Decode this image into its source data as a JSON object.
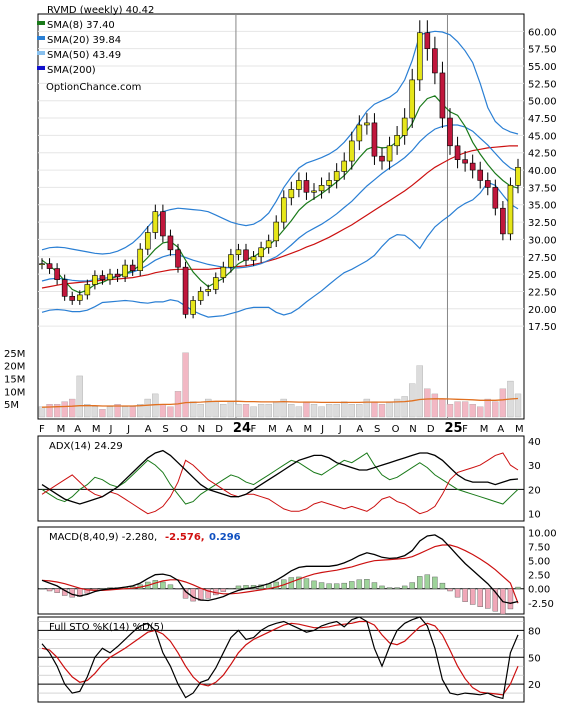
{
  "chart_data": {
    "type": "line",
    "symbol": "RVMD",
    "timeframe": "weekly",
    "title": "RVMD (weekly) 40.42",
    "watermark": "OptionChance.com",
    "x_axis_labels": [
      "F",
      "M",
      "A",
      "M",
      "J",
      "J",
      "A",
      "S",
      "O",
      "N",
      "D",
      "24",
      "F",
      "M",
      "A",
      "M",
      "J",
      "J",
      "A",
      "S",
      "O",
      "N",
      "D",
      "25",
      "F",
      "M",
      "A",
      "M"
    ],
    "price_panel": {
      "ylim": [
        15.5,
        62.5
      ],
      "yticks": [
        "17.50",
        "20.00",
        "22.50",
        "25.00",
        "27.50",
        "30.00",
        "32.50",
        "35.00",
        "37.50",
        "40.00",
        "42.50",
        "45.00",
        "47.50",
        "50.00",
        "52.50",
        "55.00",
        "57.50",
        "60.00"
      ],
      "legend": [
        {
          "label": "RVMD (weekly) 40.42",
          "color": "#000000"
        },
        {
          "label": "SMA(8) 37.40",
          "color": "#1a7a1a"
        },
        {
          "label": "SMA(20) 39.84",
          "color": "#2a7fd4"
        },
        {
          "label": "SMA(50) 43.49",
          "color": "#88c0ee"
        },
        {
          "label": "SMA(200)",
          "color": "#1010cc"
        }
      ],
      "close": [
        26.5,
        25.8,
        24.2,
        21.8,
        21.2,
        22.0,
        23.5,
        24.8,
        24.2,
        25.0,
        24.6,
        26.3,
        25.5,
        28.6,
        31.0,
        34.0,
        30.5,
        28.5,
        26.0,
        19.2,
        21.2,
        22.5,
        22.8,
        24.5,
        26.0,
        27.8,
        28.5,
        27.0,
        27.5,
        28.8,
        29.8,
        32.5,
        36.0,
        37.2,
        38.5,
        36.8,
        37.0,
        37.8,
        38.5,
        39.8,
        41.3,
        44.2,
        46.5,
        46.8,
        42.0,
        41.3,
        43.5,
        45.0,
        47.5,
        53.0,
        59.8,
        57.5,
        54.0,
        47.5,
        43.5,
        41.5,
        41.0,
        40.0,
        38.5,
        37.5,
        34.5,
        30.8,
        37.8,
        40.4
      ],
      "sma8": [
        27.0,
        26.2,
        25.3,
        24.0,
        22.8,
        22.3,
        22.7,
        23.5,
        23.8,
        24.3,
        24.7,
        25.1,
        25.5,
        26.3,
        27.4,
        28.6,
        29.5,
        29.7,
        28.9,
        27.0,
        25.3,
        24.1,
        23.2,
        23.8,
        24.4,
        25.4,
        26.5,
        27.1,
        27.5,
        28.2,
        29.1,
        30.1,
        31.4,
        32.7,
        34.2,
        35.2,
        35.9,
        36.6,
        37.4,
        38.3,
        39.2,
        40.4,
        41.8,
        43.0,
        43.4,
        43.2,
        43.3,
        44.1,
        45.2,
        46.7,
        49.1,
        50.3,
        50.7,
        49.5,
        48.4,
        47.9,
        46.3,
        44.0,
        42.3,
        40.8,
        39.5,
        38.5,
        37.7,
        37.4
      ],
      "sma20": [
        24.0,
        24.3,
        24.4,
        24.3,
        24.1,
        24.0,
        24.0,
        24.2,
        24.4,
        24.5,
        24.7,
        25.0,
        25.3,
        25.7,
        26.3,
        27.0,
        27.5,
        27.8,
        27.8,
        27.4,
        27.0,
        26.7,
        26.4,
        26.2,
        26.0,
        25.9,
        25.9,
        26.0,
        26.2,
        26.5,
        27.0,
        27.5,
        28.3,
        29.2,
        30.2,
        31.0,
        31.6,
        32.2,
        32.9,
        33.7,
        34.6,
        35.5,
        36.6,
        37.7,
        38.6,
        39.5,
        40.3,
        41.0,
        41.8,
        42.8,
        44.1,
        45.1,
        45.9,
        46.3,
        46.5,
        46.5,
        46.2,
        45.6,
        44.6,
        43.6,
        42.4,
        41.2,
        40.3,
        39.8
      ],
      "sma50": [
        23.0,
        23.2,
        23.4,
        23.6,
        23.7,
        23.8,
        23.9,
        24.0,
        24.1,
        24.2,
        24.3,
        24.4,
        24.5,
        24.7,
        24.9,
        25.2,
        25.4,
        25.6,
        25.7,
        25.7,
        25.7,
        25.7,
        25.7,
        25.8,
        25.9,
        26.0,
        26.1,
        26.2,
        26.4,
        26.6,
        26.9,
        27.2,
        27.6,
        28.0,
        28.4,
        28.9,
        29.3,
        29.8,
        30.3,
        30.9,
        31.5,
        32.1,
        32.8,
        33.5,
        34.2,
        34.9,
        35.6,
        36.3,
        37.0,
        37.8,
        38.7,
        39.6,
        40.4,
        41.0,
        41.6,
        42.1,
        42.5,
        42.8,
        43.0,
        43.2,
        43.3,
        43.4,
        43.5,
        43.49
      ],
      "bb_upper": [
        28.5,
        28.8,
        28.9,
        28.8,
        28.6,
        28.4,
        28.2,
        28.0,
        27.9,
        28.0,
        28.3,
        28.8,
        29.5,
        30.5,
        31.8,
        33.0,
        34.0,
        34.3,
        34.5,
        34.4,
        34.3,
        34.2,
        34.0,
        33.5,
        33.0,
        32.5,
        32.2,
        32.0,
        32.2,
        32.8,
        33.8,
        35.5,
        37.5,
        39.0,
        40.3,
        41.0,
        41.4,
        41.8,
        42.3,
        43.0,
        44.0,
        45.3,
        46.9,
        48.5,
        49.5,
        50.0,
        50.5,
        51.3,
        53.0,
        55.8,
        59.5,
        59.8,
        60.0,
        59.9,
        59.5,
        58.5,
        57.2,
        55.5,
        52.5,
        49.0,
        47.0,
        46.0,
        45.5,
        45.2
      ],
      "bb_lower": [
        19.5,
        19.8,
        19.9,
        19.8,
        19.6,
        19.6,
        19.8,
        20.3,
        20.9,
        21.0,
        21.1,
        21.2,
        21.1,
        20.9,
        20.8,
        21.0,
        21.0,
        21.3,
        21.1,
        20.4,
        19.7,
        19.2,
        18.8,
        18.9,
        19.0,
        19.3,
        19.6,
        20.0,
        20.2,
        20.2,
        20.2,
        19.5,
        19.1,
        19.4,
        20.1,
        21.0,
        21.8,
        22.6,
        23.5,
        24.4,
        25.2,
        25.7,
        26.3,
        26.9,
        27.7,
        29.0,
        30.1,
        30.7,
        30.6,
        29.8,
        28.7,
        30.4,
        31.8,
        32.7,
        33.5,
        34.5,
        35.2,
        35.7,
        36.7,
        38.2,
        37.8,
        36.4,
        35.1,
        34.4
      ]
    },
    "volume_panel": {
      "ylim": [
        0,
        30
      ],
      "yticks": [
        "5M",
        "10M",
        "15M",
        "20M",
        "25M"
      ],
      "values": [
        4,
        5,
        5,
        6,
        7,
        16,
        5,
        4,
        3,
        4,
        5,
        4,
        4,
        5,
        7,
        9,
        5,
        4,
        10,
        25,
        6,
        5,
        7,
        6,
        5,
        6,
        5,
        5,
        4,
        5,
        5,
        6,
        7,
        5,
        4,
        6,
        5,
        4,
        5,
        5,
        6,
        5,
        5,
        7,
        6,
        5,
        6,
        7,
        8,
        13,
        20,
        11,
        9,
        7,
        5,
        6,
        6,
        5,
        4,
        7,
        6,
        11,
        14,
        9
      ],
      "avg": [
        3.8,
        3.9,
        4.0,
        4.1,
        4.2,
        4.4,
        4.4,
        4.4,
        4.3,
        4.3,
        4.3,
        4.3,
        4.3,
        4.4,
        4.6,
        4.8,
        4.9,
        4.9,
        5.1,
        5.6,
        5.7,
        5.8,
        6.0,
        6.1,
        6.1,
        6.1,
        6.1,
        6.0,
        6.0,
        5.9,
        5.9,
        5.9,
        6.0,
        5.9,
        5.8,
        5.8,
        5.8,
        5.7,
        5.7,
        5.7,
        5.7,
        5.7,
        5.7,
        5.8,
        5.8,
        5.8,
        5.8,
        5.9,
        6.0,
        6.3,
        6.8,
        7.0,
        7.1,
        7.1,
        7.0,
        6.9,
        6.8,
        6.7,
        6.5,
        6.5,
        6.5,
        6.7,
        7.0,
        7.2
      ]
    },
    "adx_panel": {
      "label": "ADX(14) 24.29",
      "ylim": [
        7,
        42
      ],
      "yticks": [
        "10",
        "20",
        "30",
        "40"
      ],
      "adx": [
        22,
        20,
        18,
        16,
        15,
        14,
        15,
        16,
        17,
        19,
        21,
        24,
        27,
        30,
        33,
        35,
        36,
        34,
        31,
        28,
        25,
        22,
        20,
        19,
        18,
        17,
        17,
        18,
        20,
        22,
        24,
        26,
        28,
        30,
        32,
        33,
        34,
        34,
        33,
        31,
        30,
        29,
        28,
        28,
        29,
        30,
        31,
        32,
        33,
        34,
        35,
        35,
        34,
        32,
        29,
        26,
        24,
        23,
        23,
        23,
        22,
        23,
        24,
        24.29
      ],
      "plus_di": [
        20,
        18,
        16,
        15,
        17,
        20,
        22,
        25,
        24,
        22,
        21,
        23,
        26,
        29,
        32,
        30,
        27,
        22,
        18,
        14,
        15,
        18,
        20,
        22,
        24,
        26,
        25,
        23,
        22,
        24,
        26,
        28,
        30,
        32,
        31,
        29,
        27,
        26,
        28,
        30,
        32,
        31,
        33,
        35,
        30,
        26,
        24,
        25,
        27,
        29,
        31,
        29,
        26,
        24,
        22,
        20,
        19,
        18,
        17,
        16,
        15,
        14,
        17,
        20
      ],
      "minus_di": [
        18,
        20,
        22,
        24,
        26,
        23,
        20,
        18,
        17,
        19,
        18,
        16,
        14,
        12,
        10,
        11,
        13,
        17,
        23,
        32,
        30,
        27,
        24,
        22,
        20,
        18,
        17,
        18,
        18,
        17,
        16,
        14,
        12,
        11,
        11,
        12,
        14,
        15,
        14,
        13,
        12,
        13,
        12,
        11,
        13,
        16,
        17,
        15,
        14,
        12,
        10,
        11,
        13,
        18,
        24,
        27,
        28,
        29,
        30,
        32,
        34,
        35,
        30,
        28
      ]
    },
    "macd_panel": {
      "label": "MACD(8,40,9) -2.280,",
      "signal_label": "-2.576,",
      "hist_label": "0.296",
      "ylim": [
        -4.5,
        11
      ],
      "yticks": [
        "-2.50",
        "0.00",
        "2.50",
        "5.00",
        "7.50",
        "10.00"
      ],
      "macd": [
        1.5,
        1.0,
        0.5,
        -0.3,
        -1.0,
        -1.3,
        -1.0,
        -0.5,
        -0.2,
        0.0,
        0.1,
        0.3,
        0.5,
        1.0,
        1.8,
        2.5,
        2.6,
        2.3,
        1.5,
        -0.5,
        -1.5,
        -2.0,
        -2.1,
        -1.8,
        -1.4,
        -0.8,
        -0.3,
        0.0,
        0.2,
        0.5,
        0.9,
        1.5,
        2.3,
        3.2,
        3.8,
        4.0,
        4.0,
        4.0,
        4.0,
        4.2,
        4.6,
        5.2,
        5.9,
        6.4,
        6.1,
        5.6,
        5.4,
        5.5,
        5.9,
        6.8,
        8.5,
        9.4,
        9.6,
        8.8,
        7.4,
        5.9,
        4.5,
        3.3,
        2.1,
        0.9,
        -0.6,
        -2.3,
        -2.6,
        -2.28
      ],
      "signal": [
        1.5,
        1.4,
        1.2,
        0.9,
        0.5,
        0.1,
        -0.2,
        -0.3,
        -0.3,
        -0.2,
        -0.1,
        0.0,
        0.1,
        0.3,
        0.6,
        1.0,
        1.4,
        1.6,
        1.6,
        1.2,
        0.7,
        0.1,
        -0.4,
        -0.7,
        -0.9,
        -0.9,
        -0.8,
        -0.6,
        -0.4,
        -0.2,
        0.0,
        0.3,
        0.7,
        1.2,
        1.7,
        2.2,
        2.6,
        2.9,
        3.1,
        3.3,
        3.6,
        3.9,
        4.3,
        4.7,
        5.0,
        5.1,
        5.2,
        5.3,
        5.4,
        5.7,
        6.3,
        6.9,
        7.5,
        7.8,
        7.8,
        7.4,
        6.8,
        6.1,
        5.3,
        4.4,
        3.4,
        2.2,
        1.0,
        -2.576
      ]
    },
    "sto_panel": {
      "label": "Full STO %K(14) %D(5)",
      "ylim": [
        0,
        95
      ],
      "yticks": [
        "20",
        "50",
        "80"
      ],
      "k": [
        65,
        55,
        40,
        20,
        10,
        12,
        28,
        50,
        60,
        55,
        62,
        70,
        78,
        85,
        88,
        80,
        55,
        40,
        20,
        5,
        10,
        22,
        25,
        38,
        55,
        72,
        80,
        70,
        72,
        80,
        85,
        88,
        90,
        86,
        82,
        78,
        80,
        85,
        88,
        90,
        84,
        92,
        95,
        90,
        60,
        40,
        62,
        80,
        88,
        92,
        95,
        85,
        60,
        25,
        10,
        8,
        10,
        9,
        8,
        10,
        6,
        4,
        55,
        75
      ],
      "d": [
        60,
        58,
        50,
        38,
        28,
        22,
        24,
        32,
        42,
        50,
        55,
        60,
        66,
        72,
        78,
        80,
        76,
        68,
        55,
        40,
        28,
        20,
        18,
        22,
        30,
        42,
        55,
        64,
        70,
        74,
        78,
        82,
        86,
        88,
        87,
        85,
        83,
        83,
        84,
        86,
        87,
        88,
        90,
        90,
        86,
        75,
        66,
        64,
        68,
        76,
        84,
        88,
        85,
        75,
        58,
        40,
        26,
        16,
        11,
        10,
        9,
        8,
        20,
        40
      ]
    }
  }
}
